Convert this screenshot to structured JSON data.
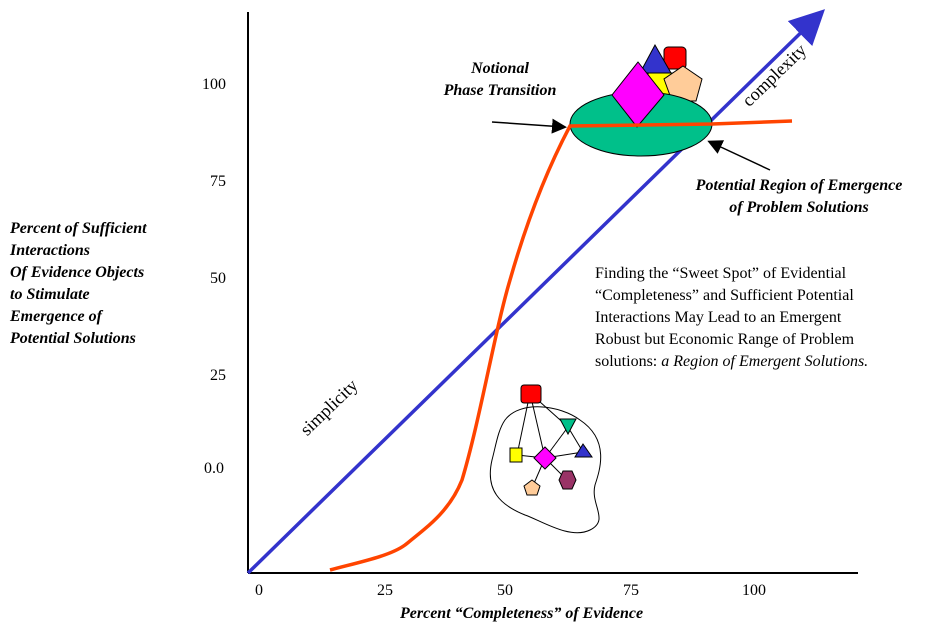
{
  "y_axis": {
    "label_lines": [
      "Percent of Sufficient",
      "Interactions",
      "Of Evidence Objects",
      "to Stimulate",
      "Emergence of",
      "Potential Solutions"
    ],
    "ticks": [
      "100",
      "75",
      "50",
      "25",
      "0.0"
    ]
  },
  "x_axis": {
    "label": "Percent “Completeness” of Evidence",
    "ticks": [
      "0",
      "25",
      "50",
      "75",
      "100"
    ]
  },
  "annotations": {
    "notional_line1": "Notional",
    "notional_line2": "Phase Transition",
    "region_line1": "Potential Region of Emergence",
    "region_line2": "of Problem Solutions",
    "sweet_line1": "Finding the “Sweet Spot” of Evidential",
    "sweet_line2": "“Completeness” and Sufficient Potential",
    "sweet_line3": "Interactions May Lead to an Emergent",
    "sweet_line4": "Robust but Economic Range of Problem",
    "sweet_line5_plain": "solutions: ",
    "sweet_line5_italic": "a Region of Emergent Solutions.",
    "simplicity": "simplicity",
    "complexity": "complexity"
  },
  "colors": {
    "diagonal": "#3333cc",
    "curve": "#ff4400",
    "ellipse": "#00c08a",
    "red": "#ff0000",
    "blue": "#3333cc",
    "yellow": "#ffff00",
    "magenta": "#ff00ff",
    "peach": "#ffcc99",
    "teal": "#00c08a",
    "purple": "#993366"
  }
}
